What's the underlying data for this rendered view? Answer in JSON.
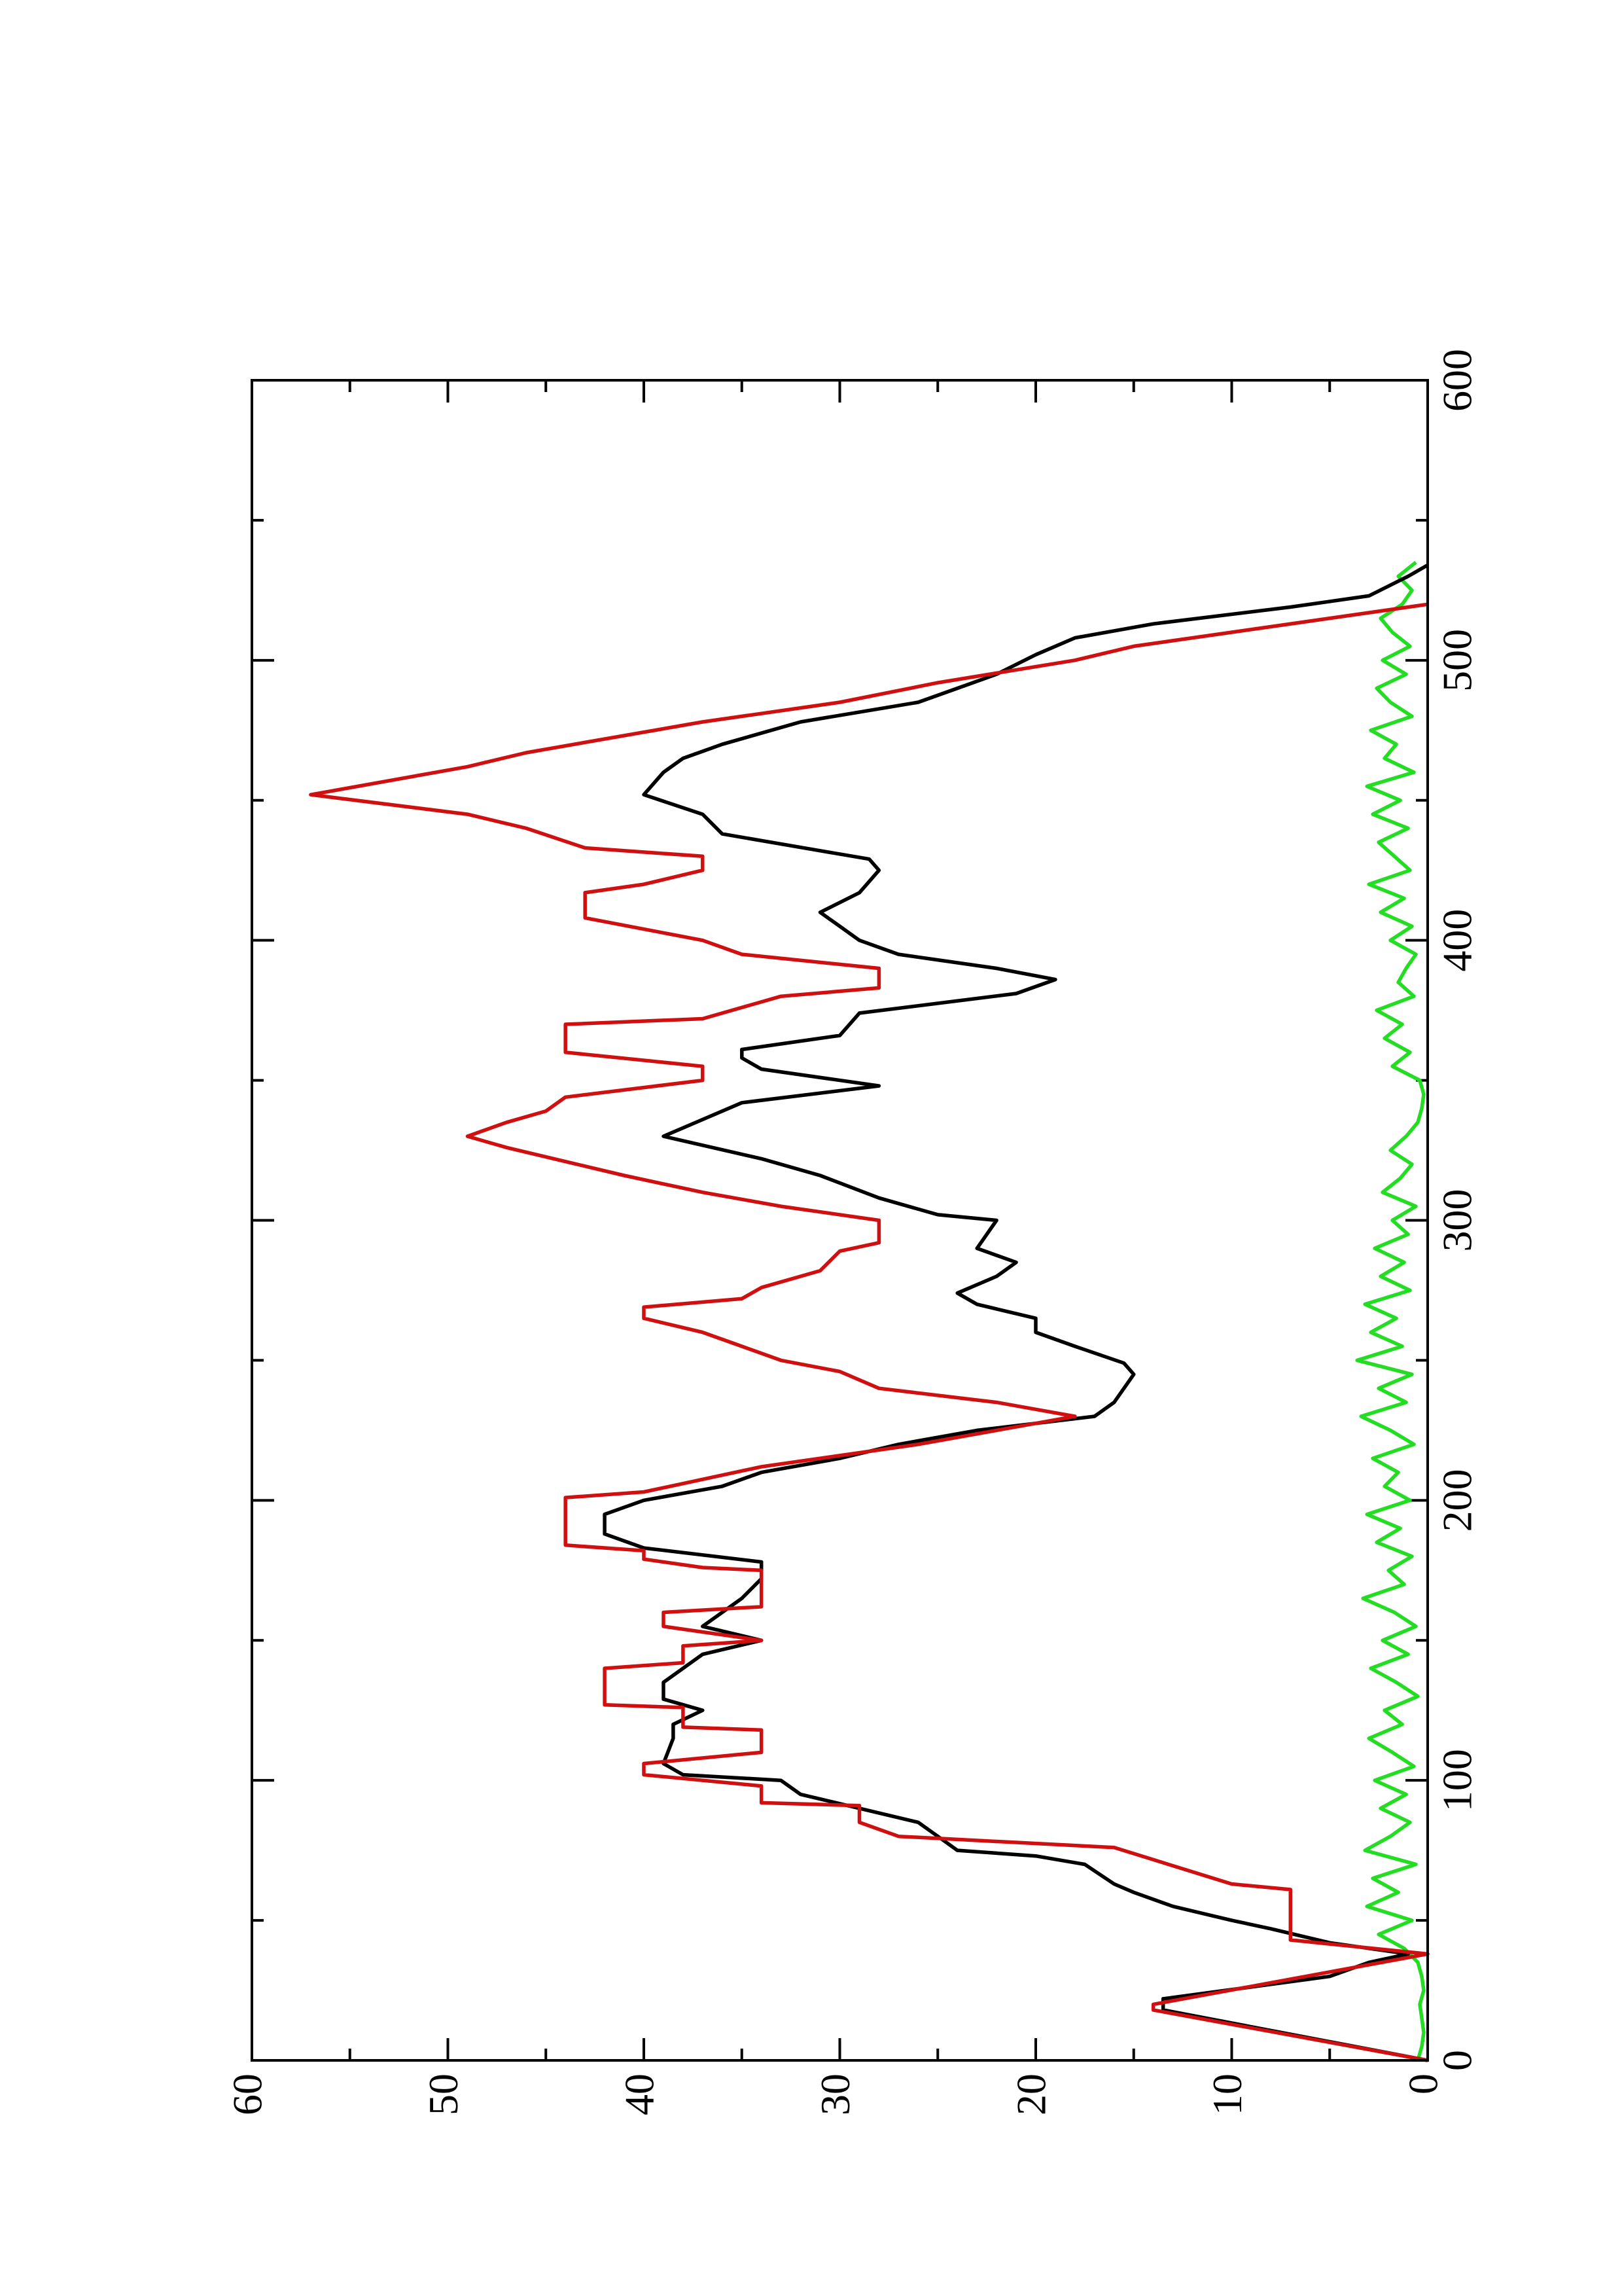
{
  "chart_data": {
    "type": "line",
    "xlim": [
      0,
      600
    ],
    "xticks": [
      0,
      100,
      200,
      300,
      400,
      500,
      600
    ],
    "xminorticks": [
      50,
      150,
      250,
      350,
      450,
      550
    ],
    "ylim": [
      0,
      60
    ],
    "yticks": [
      0,
      10,
      20,
      30,
      40,
      50,
      60
    ],
    "yminorticks": [
      5,
      15,
      25,
      35,
      45,
      55
    ],
    "rotated": true,
    "series": [
      {
        "color": "#d01010",
        "x": [
          0,
          18,
          20,
          38,
          43,
          61,
          63,
          76,
          80,
          85,
          91,
          92,
          98,
          102,
          106,
          110,
          118,
          119,
          126,
          127,
          140,
          142,
          148,
          150,
          155,
          160,
          162,
          175,
          176,
          179,
          182,
          184,
          201,
          203,
          212,
          220,
          225,
          230,
          235,
          240,
          246,
          250,
          255,
          260,
          265,
          269,
          272,
          276,
          282,
          289,
          292,
          300,
          305,
          310,
          316,
          321,
          326,
          330,
          335,
          339,
          344,
          350,
          355,
          360,
          370,
          372,
          380,
          383,
          390,
          395,
          400,
          404,
          408,
          417,
          420,
          425,
          430,
          433,
          440,
          445,
          452,
          462,
          467,
          478,
          485,
          492,
          500,
          505,
          520
        ],
        "values": [
          0,
          14,
          14,
          0,
          7,
          7,
          10,
          16,
          27,
          29,
          29,
          34,
          34,
          40,
          40,
          34,
          34,
          38,
          38,
          42,
          42,
          38,
          38,
          34,
          39,
          39,
          34,
          34,
          37,
          40,
          40,
          44,
          44,
          40,
          34,
          26,
          22,
          18,
          22,
          28,
          30,
          33,
          35,
          37,
          40,
          40,
          35,
          34,
          31,
          30,
          28,
          28,
          33,
          37,
          41,
          44,
          47,
          49,
          47,
          45,
          44,
          37,
          37,
          44,
          44,
          37,
          33,
          28,
          28,
          35,
          37,
          40,
          43,
          43,
          40,
          37,
          37,
          43,
          46,
          49,
          57,
          49,
          46,
          37,
          30,
          25,
          18,
          15,
          0
        ]
      },
      {
        "color": "#000000",
        "x": [
          0,
          18,
          22,
          30,
          35,
          38,
          42,
          47,
          50,
          55,
          60,
          63,
          70,
          73,
          75,
          80,
          85,
          90,
          95,
          100,
          102,
          106,
          115,
          120,
          125,
          129,
          135,
          140,
          145,
          150,
          155,
          160,
          165,
          172,
          178,
          183,
          188,
          195,
          200,
          205,
          210,
          215,
          220,
          225,
          230,
          235,
          245,
          249,
          255,
          260,
          265,
          270,
          274,
          280,
          285,
          290,
          300,
          302,
          308,
          316,
          322,
          330,
          336,
          342,
          348,
          354,
          358,
          361,
          366,
          374,
          381,
          386,
          390,
          395,
          400,
          405,
          410,
          417,
          425,
          429,
          432,
          438,
          445,
          452,
          460,
          465,
          470,
          478,
          485,
          490,
          495,
          502,
          508,
          513,
          519,
          523,
          530,
          534
        ],
        "values": [
          0,
          13.5,
          13.5,
          5,
          3,
          1,
          5,
          8,
          10,
          13,
          15,
          16,
          17.5,
          20,
          24,
          25,
          26,
          29,
          32,
          33,
          38,
          39,
          38.5,
          38.5,
          37,
          39,
          39,
          38,
          37,
          34,
          37,
          36,
          35,
          34,
          34,
          40,
          42,
          42,
          40,
          36,
          34,
          30,
          27,
          23,
          17,
          16,
          15,
          15.5,
          18,
          20,
          20,
          23,
          24,
          22,
          21,
          23,
          22,
          25,
          28,
          31,
          34,
          39,
          37,
          35,
          28,
          34,
          35,
          35,
          30,
          29,
          21,
          19,
          22,
          27,
          29,
          30,
          31,
          29,
          28,
          28.5,
          31,
          36,
          37,
          40,
          39,
          38,
          36,
          32,
          26,
          24,
          22,
          20,
          18,
          14,
          7,
          3,
          1,
          0
        ]
      },
      {
        "color": "#22dd22",
        "x": [
          0,
          5,
          10,
          15,
          20,
          25,
          30,
          35,
          40,
          45,
          50,
          55,
          60,
          65,
          70,
          75,
          80,
          85,
          90,
          95,
          100,
          105,
          110,
          115,
          120,
          125,
          130,
          135,
          140,
          145,
          150,
          155,
          160,
          165,
          170,
          175,
          180,
          185,
          190,
          195,
          200,
          205,
          210,
          215,
          220,
          225,
          230,
          235,
          240,
          245,
          250,
          255,
          260,
          265,
          270,
          275,
          280,
          285,
          290,
          295,
          300,
          305,
          310,
          315,
          320,
          325,
          330,
          335,
          340,
          345,
          350,
          355,
          360,
          365,
          370,
          375,
          380,
          385,
          390,
          395,
          400,
          405,
          410,
          415,
          420,
          425,
          430,
          435,
          440,
          445,
          450,
          455,
          460,
          465,
          470,
          475,
          480,
          485,
          490,
          495,
          500,
          505,
          510,
          515,
          520,
          525,
          530,
          535
        ],
        "values": [
          0.5,
          0.3,
          0.2,
          0.3,
          0.4,
          0.2,
          0.3,
          0.5,
          1.2,
          2.5,
          0.8,
          3.1,
          1.5,
          2.8,
          0.6,
          3.2,
          1.9,
          0.9,
          2.4,
          1.1,
          2.7,
          0.7,
          1.8,
          3.0,
          1.3,
          2.2,
          0.5,
          1.6,
          2.9,
          1.0,
          2.3,
          0.6,
          1.7,
          3.3,
          1.2,
          2.0,
          0.8,
          2.6,
          1.4,
          3.1,
          0.9,
          2.2,
          1.5,
          2.8,
          0.7,
          1.9,
          3.4,
          1.1,
          2.5,
          0.8,
          3.6,
          1.3,
          2.9,
          1.6,
          3.2,
          0.9,
          2.4,
          1.2,
          2.7,
          1.0,
          1.8,
          0.6,
          2.3,
          1.4,
          0.8,
          1.9,
          1.1,
          0.5,
          0.3,
          0.2,
          0.4,
          1.8,
          0.9,
          2.2,
          1.3,
          2.6,
          0.7,
          1.5,
          1.1,
          0.6,
          1.9,
          0.8,
          2.4,
          1.2,
          3.0,
          0.9,
          1.7,
          2.5,
          1.0,
          2.8,
          1.4,
          3.1,
          0.7,
          2.2,
          1.6,
          2.9,
          0.8,
          1.9,
          2.6,
          1.1,
          2.3,
          0.9,
          1.8,
          2.4,
          1.3,
          0.8,
          1.5,
          0.6
        ]
      }
    ]
  }
}
